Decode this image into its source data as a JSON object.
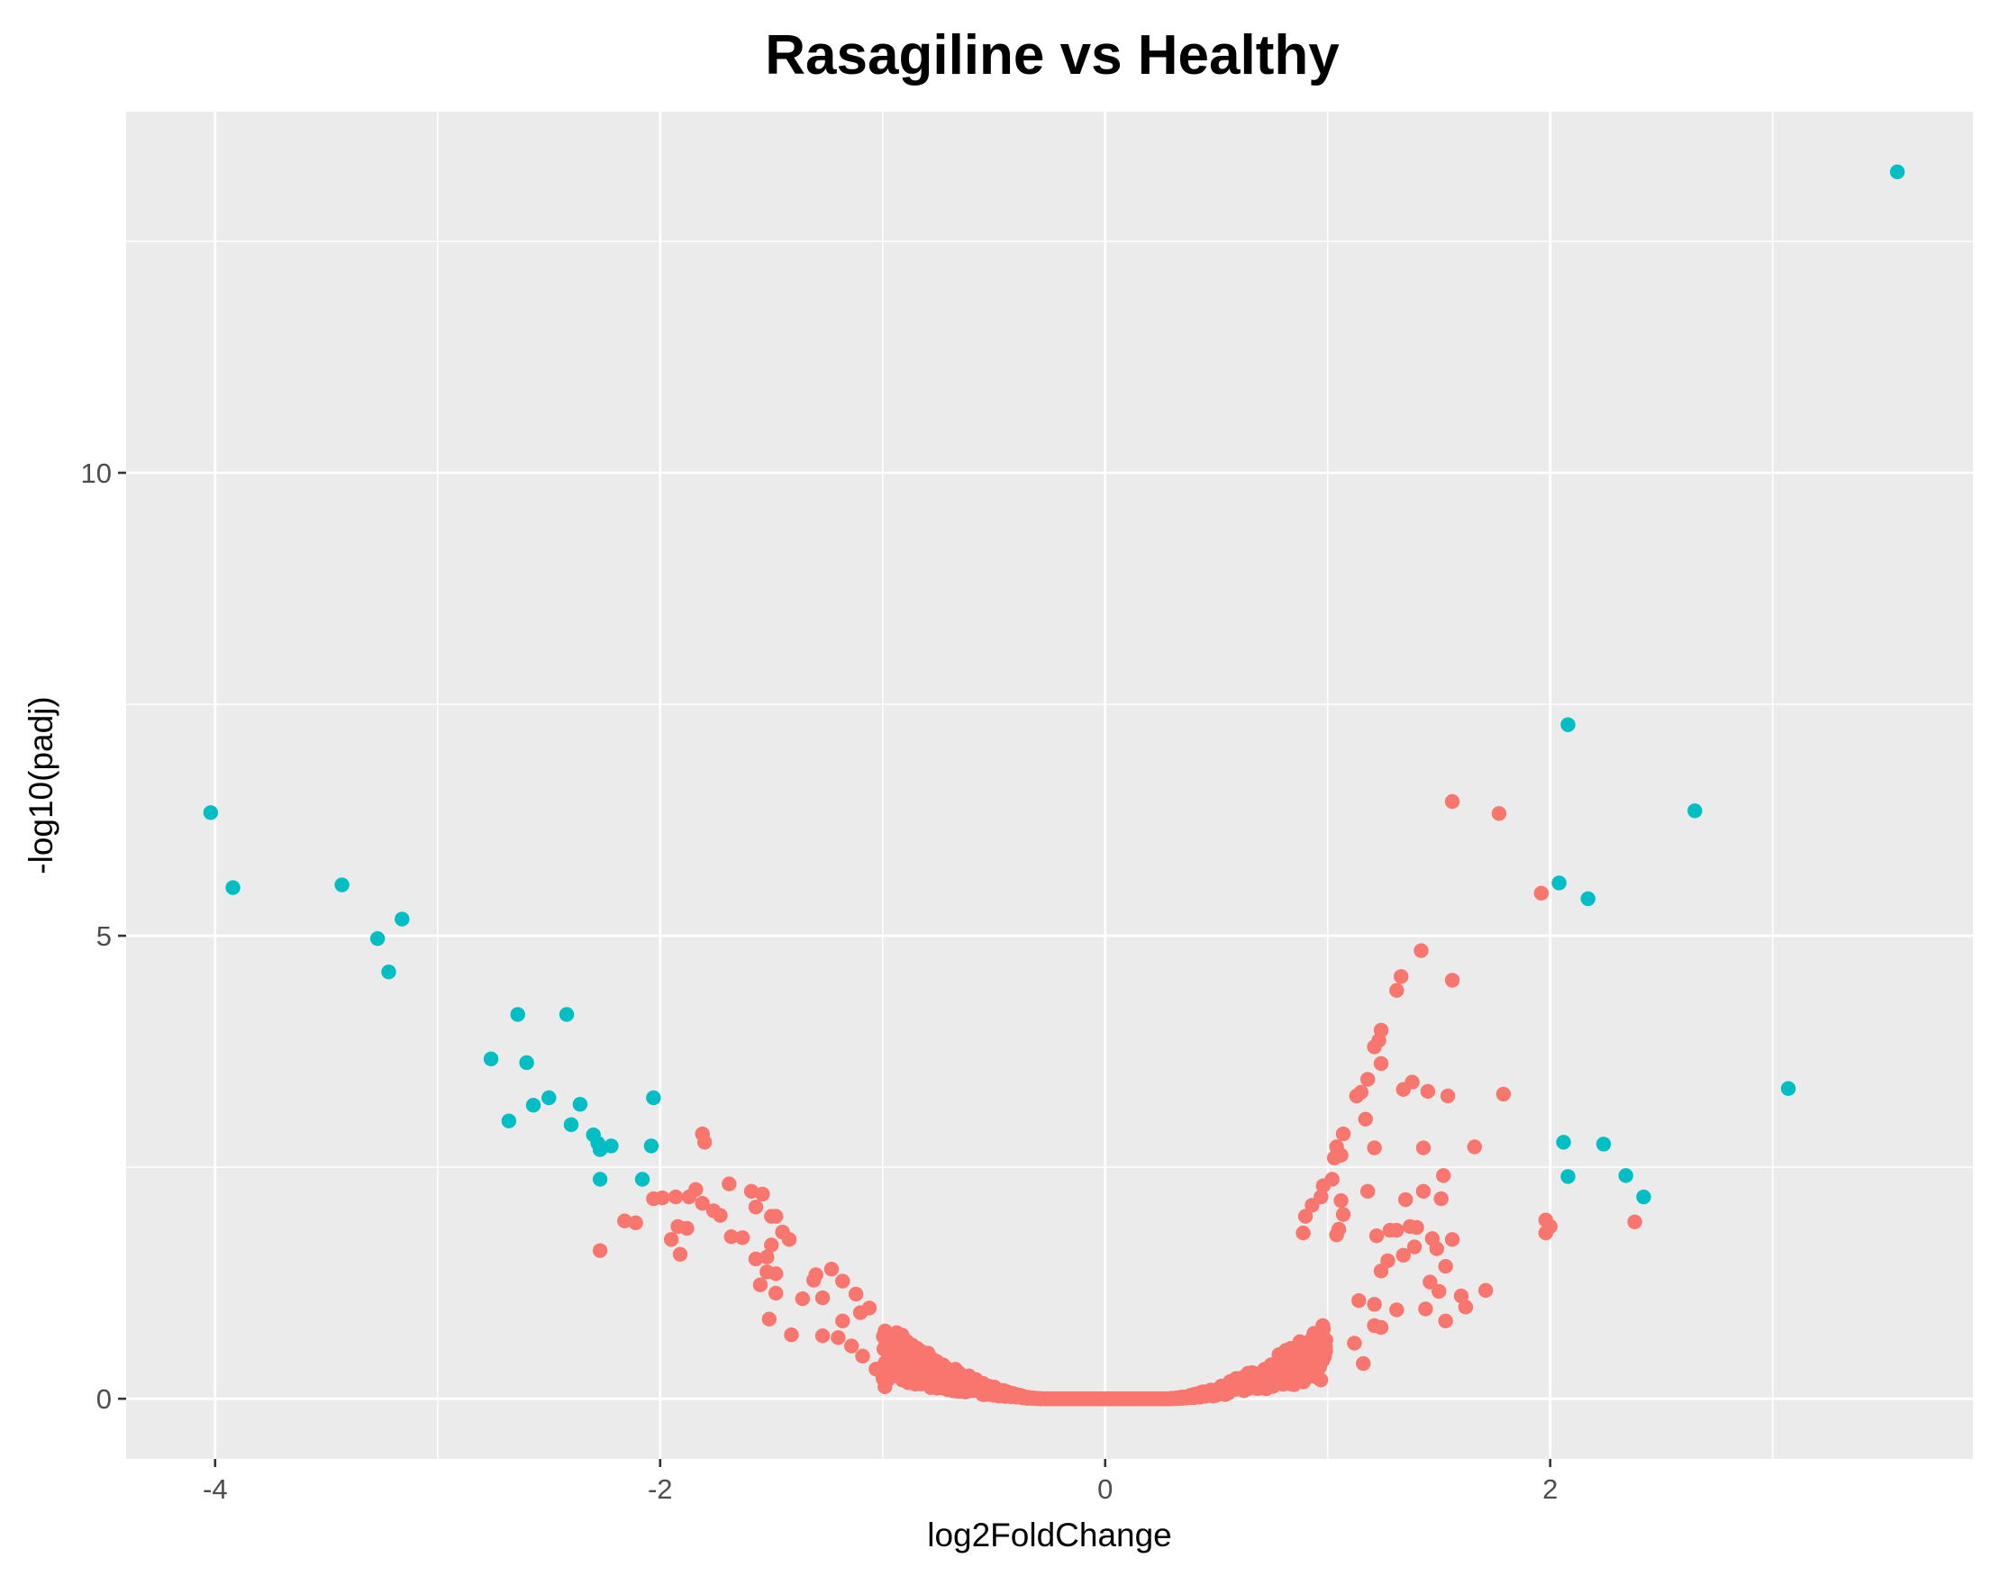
{
  "colors": {
    "panel_background": "#EBEBEB",
    "grid_major": "#FFFFFF",
    "significant": "#00BFC4",
    "not_significant": "#F8766D",
    "tick_text": "#4D4D4D",
    "tick_mark": "#333333"
  },
  "chart_data": {
    "type": "scatter",
    "title": "Rasagiline vs Healthy",
    "xlabel": "log2FoldChange",
    "ylabel": "-log10(padj)",
    "xlim": [
      -4.4,
      3.9
    ],
    "ylim": [
      -0.65,
      13.9
    ],
    "x_ticks": [
      -4,
      -2,
      0,
      2
    ],
    "x_tick_labels": [
      "-4",
      "-2",
      "0",
      "2"
    ],
    "y_ticks": [
      0,
      5,
      10
    ],
    "y_tick_labels": [
      "0",
      "5",
      "10"
    ],
    "x_minor_gridlines": [
      -3,
      -1,
      1,
      3
    ],
    "y_minor_gridlines": [
      2.5,
      7.5,
      12.5
    ],
    "grid": true,
    "legend": "none",
    "series": [
      {
        "color": "#00BFC4",
        "points": [
          [
            3.56,
            13.25
          ],
          [
            2.08,
            7.28
          ],
          [
            2.65,
            6.35
          ],
          [
            -4.02,
            6.33
          ],
          [
            -3.92,
            5.52
          ],
          [
            -3.43,
            5.55
          ],
          [
            2.04,
            5.57
          ],
          [
            2.17,
            5.4
          ],
          [
            -3.16,
            5.18
          ],
          [
            -3.27,
            4.97
          ],
          [
            -3.22,
            4.61
          ],
          [
            -2.64,
            4.15
          ],
          [
            -2.42,
            4.15
          ],
          [
            -2.76,
            3.67
          ],
          [
            -2.6,
            3.63
          ],
          [
            -2.5,
            3.25
          ],
          [
            -2.57,
            3.17
          ],
          [
            -2.36,
            3.18
          ],
          [
            -2.68,
            3.0
          ],
          [
            -2.4,
            2.96
          ],
          [
            -2.3,
            2.85
          ],
          [
            -2.28,
            2.76
          ],
          [
            -2.27,
            2.69
          ],
          [
            -2.22,
            2.73
          ],
          [
            -2.03,
            3.25
          ],
          [
            -2.04,
            2.73
          ],
          [
            -2.08,
            2.37
          ],
          [
            -2.27,
            2.37
          ],
          [
            3.07,
            3.35
          ],
          [
            2.06,
            2.77
          ],
          [
            2.24,
            2.75
          ],
          [
            2.08,
            2.4
          ],
          [
            2.34,
            2.41
          ],
          [
            2.42,
            2.18
          ]
        ]
      },
      {
        "color": "#F8766D",
        "points": [
          [
            1.56,
            6.45
          ],
          [
            1.77,
            6.32
          ],
          [
            1.96,
            5.46
          ],
          [
            1.42,
            4.84
          ],
          [
            1.33,
            4.56
          ],
          [
            1.56,
            4.52
          ],
          [
            1.31,
            4.41
          ],
          [
            1.24,
            3.98
          ],
          [
            1.23,
            3.87
          ],
          [
            1.21,
            3.8
          ],
          [
            1.24,
            3.62
          ],
          [
            1.38,
            3.42
          ],
          [
            1.34,
            3.34
          ],
          [
            1.45,
            3.32
          ],
          [
            1.54,
            3.27
          ],
          [
            1.79,
            3.29
          ],
          [
            1.18,
            3.45
          ],
          [
            1.15,
            3.31
          ],
          [
            1.13,
            3.27
          ],
          [
            1.17,
            3.02
          ],
          [
            1.07,
            2.86
          ],
          [
            1.04,
            2.72
          ],
          [
            1.06,
            2.63
          ],
          [
            1.03,
            2.6
          ],
          [
            1.21,
            2.71
          ],
          [
            1.43,
            2.71
          ],
          [
            1.66,
            2.72
          ],
          [
            1.52,
            2.41
          ],
          [
            1.43,
            2.24
          ],
          [
            1.35,
            2.15
          ],
          [
            1.51,
            2.16
          ],
          [
            1.18,
            2.24
          ],
          [
            1.02,
            2.37
          ],
          [
            0.98,
            2.3
          ],
          [
            0.97,
            2.18
          ],
          [
            1.06,
            2.14
          ],
          [
            0.93,
            2.09
          ],
          [
            0.9,
            1.97
          ],
          [
            1.07,
            1.99
          ],
          [
            1.37,
            1.86
          ],
          [
            1.4,
            1.85
          ],
          [
            1.31,
            1.82
          ],
          [
            1.28,
            1.82
          ],
          [
            1.22,
            1.76
          ],
          [
            1.47,
            1.73
          ],
          [
            1.56,
            1.72
          ],
          [
            1.05,
            1.83
          ],
          [
            1.04,
            1.77
          ],
          [
            0.89,
            1.79
          ],
          [
            1.34,
            1.55
          ],
          [
            1.39,
            1.64
          ],
          [
            1.49,
            1.62
          ],
          [
            1.27,
            1.49
          ],
          [
            1.53,
            1.43
          ],
          [
            1.24,
            1.38
          ],
          [
            1.46,
            1.26
          ],
          [
            1.5,
            1.16
          ],
          [
            1.6,
            1.11
          ],
          [
            1.71,
            1.17
          ],
          [
            1.62,
            0.99
          ],
          [
            1.53,
            0.84
          ],
          [
            1.44,
            0.97
          ],
          [
            1.31,
            0.96
          ],
          [
            1.21,
            1.02
          ],
          [
            1.14,
            1.06
          ],
          [
            1.21,
            0.79
          ],
          [
            1.24,
            0.77
          ],
          [
            1.12,
            0.6
          ],
          [
            1.16,
            0.38
          ],
          [
            0.96,
            0.22
          ],
          [
            1.98,
            1.93
          ],
          [
            2.0,
            1.86
          ],
          [
            1.98,
            1.79
          ],
          [
            2.38,
            1.91
          ],
          [
            -1.81,
            2.86
          ],
          [
            -1.8,
            2.77
          ],
          [
            -1.69,
            2.32
          ],
          [
            -1.59,
            2.24
          ],
          [
            -1.54,
            2.21
          ],
          [
            -1.84,
            2.26
          ],
          [
            -1.87,
            2.18
          ],
          [
            -1.81,
            2.11
          ],
          [
            -1.76,
            2.03
          ],
          [
            -1.99,
            2.17
          ],
          [
            -2.03,
            2.16
          ],
          [
            -1.93,
            2.18
          ],
          [
            -1.88,
            1.84
          ],
          [
            -1.92,
            1.86
          ],
          [
            -1.95,
            1.72
          ],
          [
            -1.91,
            1.56
          ],
          [
            -1.73,
            1.98
          ],
          [
            -1.68,
            1.75
          ],
          [
            -1.63,
            1.74
          ],
          [
            -1.57,
            2.07
          ],
          [
            -1.48,
            1.97
          ],
          [
            -1.5,
            1.97
          ],
          [
            -1.45,
            1.8
          ],
          [
            -1.42,
            1.72
          ],
          [
            -1.5,
            1.66
          ],
          [
            -1.52,
            1.53
          ],
          [
            -1.57,
            1.51
          ],
          [
            -1.52,
            1.37
          ],
          [
            -1.48,
            1.35
          ],
          [
            -1.55,
            1.23
          ],
          [
            -1.48,
            1.14
          ],
          [
            -1.51,
            0.86
          ],
          [
            -1.41,
            0.69
          ],
          [
            -1.3,
            1.34
          ],
          [
            -1.23,
            1.4
          ],
          [
            -1.31,
            1.28
          ],
          [
            -1.18,
            1.27
          ],
          [
            -1.12,
            1.13
          ],
          [
            -1.27,
            1.09
          ],
          [
            -1.36,
            1.08
          ],
          [
            -1.06,
            0.98
          ],
          [
            -1.1,
            0.93
          ],
          [
            -1.18,
            0.84
          ],
          [
            -1.27,
            0.68
          ],
          [
            -1.2,
            0.66
          ],
          [
            -1.14,
            0.57
          ],
          [
            -1.09,
            0.46
          ],
          [
            -1.03,
            0.32
          ],
          [
            -0.99,
            0.13
          ],
          [
            -2.27,
            1.6
          ],
          [
            -2.11,
            1.9
          ],
          [
            -2.16,
            1.92
          ]
        ]
      }
    ],
    "dense_band": {
      "color": "#F8766D",
      "description": "hundreds of overlapping points along a parabolic floor from x=-1.0 to x=1.0",
      "x_range": [
        -1.0,
        1.0
      ],
      "curve_floor": 0.0,
      "curvature": 1.2,
      "spread": 0.9
    }
  }
}
